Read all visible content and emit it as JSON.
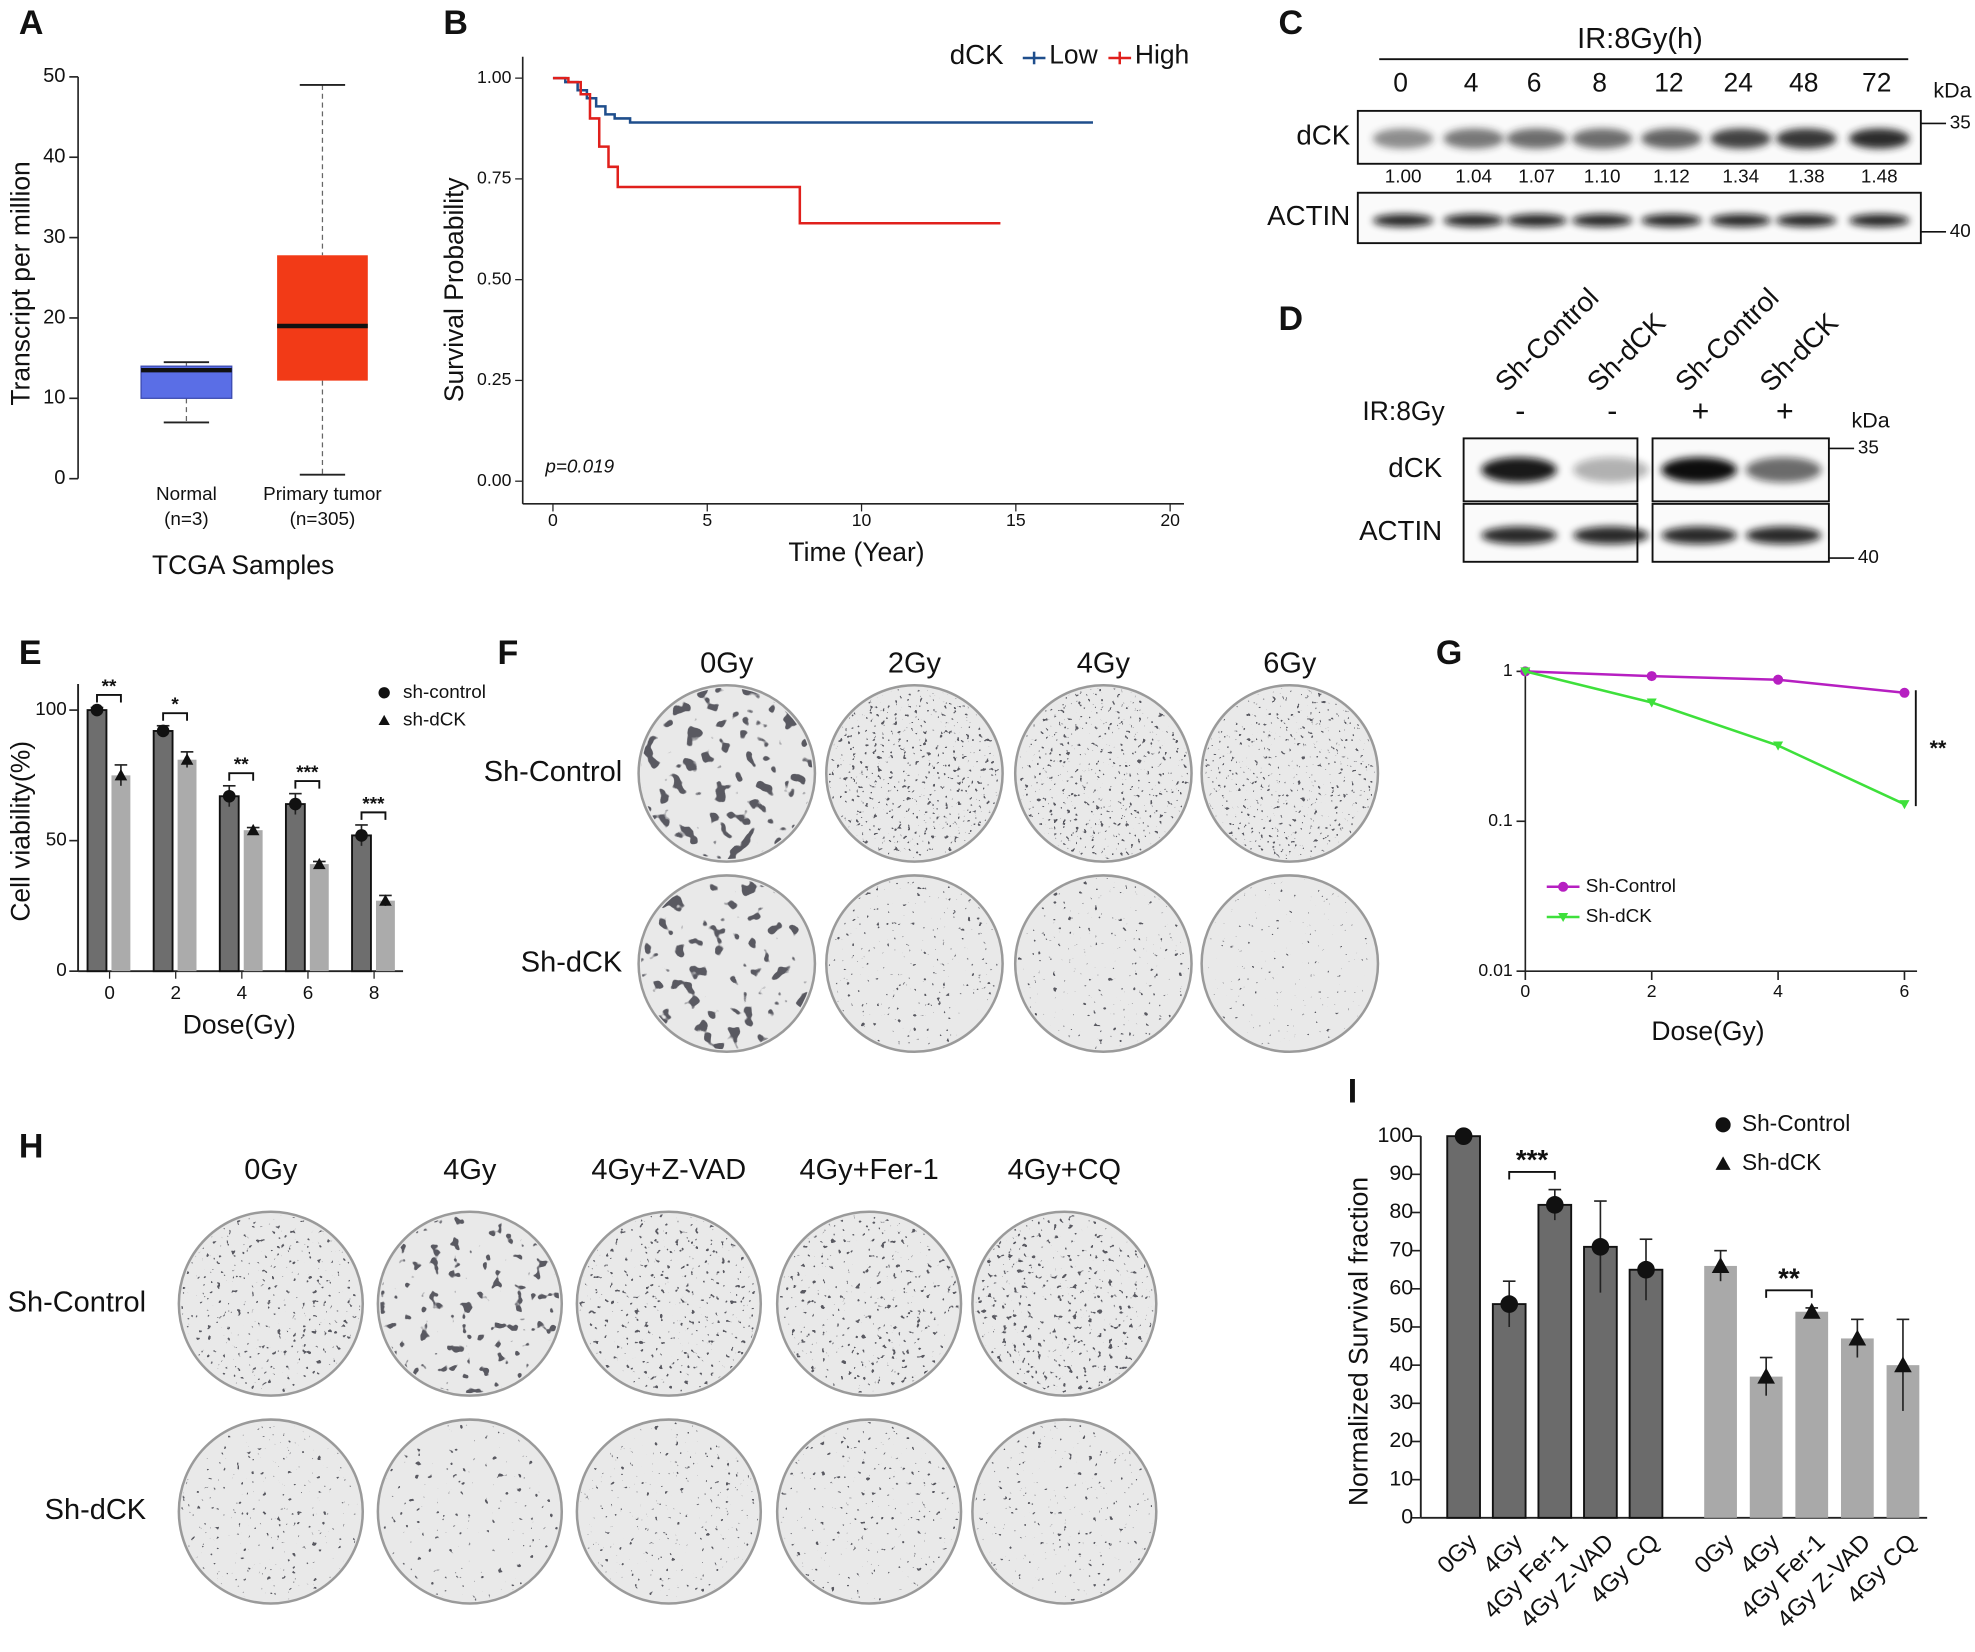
{
  "panel_labels": [
    "A",
    "B",
    "C",
    "D",
    "E",
    "F",
    "G",
    "H",
    "I"
  ],
  "chart_data": [
    {
      "type": "box",
      "categories": [
        "Normal",
        "Primary tumor"
      ],
      "category_counts": [
        "(n=3)",
        "(n=305)"
      ],
      "boxes": [
        {
          "min": 7,
          "q1": 10,
          "median": 13.5,
          "q3": 14,
          "max": 14.5
        },
        {
          "min": 0.5,
          "q1": 12.2,
          "median": 19,
          "q3": 27.8,
          "max": 49
        }
      ],
      "colors": [
        "#5a6ee6",
        "#f23a17"
      ],
      "ylim": [
        0,
        50
      ],
      "yticks": [
        0,
        10,
        20,
        30,
        40,
        50
      ],
      "ylabel": "Transcript per million",
      "xlabel": "TCGA Samples"
    },
    {
      "type": "step",
      "legend_title": "dCK",
      "series": [
        {
          "name": "Low",
          "color": "#1f4e8c",
          "x": [
            0,
            0.4,
            0.8,
            1.1,
            1.4,
            1.7,
            2.0,
            2.5,
            17.5
          ],
          "values": [
            1,
            0.99,
            0.97,
            0.95,
            0.93,
            0.91,
            0.9,
            0.89,
            0.89
          ]
        },
        {
          "name": "High",
          "color": "#e0201c",
          "x": [
            0,
            0.5,
            0.9,
            1.2,
            1.5,
            1.8,
            2.1,
            8,
            14.5
          ],
          "values": [
            1,
            0.99,
            0.96,
            0.9,
            0.83,
            0.78,
            0.73,
            0.64,
            0.64
          ]
        }
      ],
      "xlim": [
        0,
        20
      ],
      "xticks": [
        0,
        5,
        10,
        15,
        20
      ],
      "ylim": [
        0,
        1
      ],
      "yticks": [
        {
          "value": 0,
          "label": "0.00"
        },
        {
          "value": 0.25,
          "label": "0.25"
        },
        {
          "value": 0.5,
          "label": "0.50"
        },
        {
          "value": 0.75,
          "label": "0.75"
        },
        {
          "value": 1,
          "label": "1.00"
        }
      ],
      "ylabel": "Survival Probability",
      "xlabel": "Time (Year)",
      "annotation": "p=0.019"
    },
    {
      "type": "bar",
      "grouping": "category",
      "categories": [
        "0",
        "2",
        "4",
        "6",
        "8"
      ],
      "series": [
        {
          "name": "sh-control",
          "color": "#6e6e6e",
          "marker": "circle",
          "values": [
            100,
            92,
            67,
            64,
            52
          ],
          "errors": [
            1,
            2,
            4,
            4,
            4
          ]
        },
        {
          "name": "sh-dCK",
          "color": "#ababab",
          "marker": "triangle",
          "values": [
            75,
            81,
            54,
            41,
            27
          ],
          "errors": [
            4,
            3,
            1,
            1,
            2
          ]
        }
      ],
      "ylim": [
        0,
        110
      ],
      "yticks": [
        0,
        50,
        100
      ],
      "significance": [
        "**",
        "*",
        "**",
        "***",
        "***"
      ],
      "ylabel": "Cell viability(%)",
      "xlabel": "Dose(Gy)",
      "legend": "top-right"
    },
    {
      "type": "line",
      "log_y": true,
      "x": [
        0,
        2,
        4,
        6
      ],
      "series": [
        {
          "name": "Sh-Control",
          "color": "#b61fc1",
          "marker": "circle",
          "values": [
            1,
            0.93,
            0.88,
            0.72
          ]
        },
        {
          "name": "Sh-dCK",
          "color": "#3ee03b",
          "marker": "triangle-down",
          "values": [
            1,
            0.62,
            0.32,
            0.13
          ]
        }
      ],
      "xlim": [
        0,
        6
      ],
      "xticks": [
        0,
        2,
        4,
        6
      ],
      "ylim": [
        0.01,
        1
      ],
      "yticks": [
        0.01,
        0.1,
        1
      ],
      "xlabel": "Dose(Gy)",
      "annotation": "**",
      "legend": "bottom-left"
    },
    {
      "type": "bar",
      "grouping": "series",
      "categories": [
        "0Gy",
        "4Gy",
        "4Gy Fer-1",
        "4Gy Z-VAD",
        "4Gy CQ"
      ],
      "series": [
        {
          "name": "Sh-Control",
          "color": "#6b6b6b",
          "marker": "circle",
          "values": [
            100,
            56,
            82,
            71,
            65
          ],
          "errors": [
            0,
            6,
            4,
            12,
            8
          ]
        },
        {
          "name": "Sh-dCK",
          "color": "#a9a9a9",
          "marker": "triangle",
          "values": [
            66,
            37,
            54,
            47,
            40
          ],
          "errors": [
            4,
            5,
            1,
            5,
            12
          ]
        }
      ],
      "ylim": [
        0,
        100
      ],
      "yticks": [
        0,
        10,
        20,
        30,
        40,
        50,
        60,
        70,
        80,
        90,
        100
      ],
      "significance": [
        "***",
        "**"
      ],
      "ylabel": "Normalized Survival fraction",
      "legend": "top-right"
    }
  ],
  "blot_c": {
    "title": "IR:8Gy(h)",
    "lanes": [
      "0",
      "4",
      "6",
      "8",
      "12",
      "24",
      "48",
      "72"
    ],
    "unit": "kDa",
    "rows": [
      "dCK",
      "ACTIN"
    ],
    "markers": [
      "35",
      "40"
    ],
    "quantification": [
      "1.00",
      "1.04",
      "1.07",
      "1.10",
      "1.12",
      "1.34",
      "1.38",
      "1.48"
    ]
  },
  "blot_d": {
    "lanes": [
      "Sh-Control",
      "Sh-dCK",
      "Sh-Control",
      "Sh-dCK"
    ],
    "treatment": "IR:8Gy",
    "treatment_signs": [
      "-",
      "-",
      "+",
      "+"
    ],
    "unit": "kDa",
    "rows": [
      "dCK",
      "ACTIN"
    ],
    "markers": [
      "35",
      "40"
    ]
  },
  "colony_f": {
    "columns": [
      "0Gy",
      "2Gy",
      "4Gy",
      "6Gy"
    ],
    "rows": [
      "Sh-Control",
      "Sh-dCK"
    ]
  },
  "colony_h": {
    "columns": [
      "0Gy",
      "4Gy",
      "4Gy+Z-VAD",
      "4Gy+Fer-1",
      "4Gy+CQ"
    ],
    "rows": [
      "Sh-Control",
      "Sh-dCK"
    ]
  }
}
